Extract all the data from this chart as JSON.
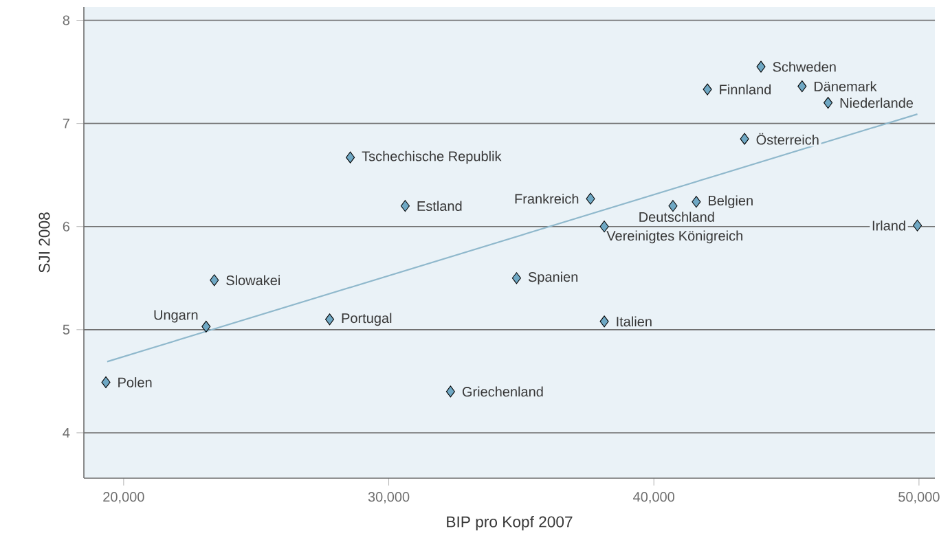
{
  "chart_data": {
    "type": "scatter",
    "xlabel": "BIP pro Kopf 2007",
    "ylabel": "SJI 2008",
    "xlim": [
      18500,
      50600
    ],
    "ylim": [
      3.56,
      8.13
    ],
    "xticks": [
      {
        "value": 20000,
        "label": "20,000"
      },
      {
        "value": 30000,
        "label": "30,000"
      },
      {
        "value": 40000,
        "label": "40,000"
      },
      {
        "value": 50000,
        "label": "50,000"
      }
    ],
    "yticks": [
      4,
      5,
      6,
      7,
      8
    ],
    "grid": "y",
    "marker": "diamond",
    "series": [
      {
        "color": "#6fa8c4",
        "x": [
          19330,
          23110,
          23420,
          27770,
          28550,
          30620,
          32330,
          34820,
          37610,
          38130,
          38130,
          40720,
          41600,
          42020,
          43420,
          44040,
          45590,
          46570,
          49940
        ],
        "values": [
          4.49,
          5.03,
          5.48,
          5.1,
          6.67,
          6.2,
          4.4,
          5.5,
          6.27,
          6.0,
          5.08,
          6.2,
          6.24,
          7.33,
          6.85,
          7.55,
          7.36,
          7.2,
          6.01
        ]
      },
      {
        "type": "line",
        "marker": "none",
        "color": "#8fb8cc",
        "x": [
          19380,
          49940
        ],
        "values": [
          4.69,
          7.09
        ]
      }
    ],
    "annotations": [
      {
        "text": "Polen",
        "x": 19330,
        "y": 4.49
      },
      {
        "text": "Ungarn",
        "x": 23110,
        "y": 5.03
      },
      {
        "text": "Slowakei",
        "x": 23420,
        "y": 5.48
      },
      {
        "text": "Portugal",
        "x": 27770,
        "y": 5.1
      },
      {
        "text": "Tschechische Republik",
        "x": 28550,
        "y": 6.67
      },
      {
        "text": "Estland",
        "x": 30620,
        "y": 6.2
      },
      {
        "text": "Griechenland",
        "x": 32330,
        "y": 4.4
      },
      {
        "text": "Spanien",
        "x": 34820,
        "y": 5.5
      },
      {
        "text": "Frankreich",
        "x": 37610,
        "y": 6.27
      },
      {
        "text": "Vereinigtes Königreich",
        "x": 38130,
        "y": 6.0
      },
      {
        "text": "Italien",
        "x": 38130,
        "y": 5.08
      },
      {
        "text": "Deutschland",
        "x": 40720,
        "y": 6.2
      },
      {
        "text": "Belgien",
        "x": 41600,
        "y": 6.24
      },
      {
        "text": "Finnland",
        "x": 42020,
        "y": 7.33
      },
      {
        "text": "Österreich",
        "x": 43420,
        "y": 6.85
      },
      {
        "text": "Schweden",
        "x": 44040,
        "y": 7.55
      },
      {
        "text": "Dänemark",
        "x": 45590,
        "y": 7.36
      },
      {
        "text": "Niederlande",
        "x": 46570,
        "y": 7.2
      },
      {
        "text": "Irland",
        "x": 49940,
        "y": 6.01
      }
    ]
  }
}
